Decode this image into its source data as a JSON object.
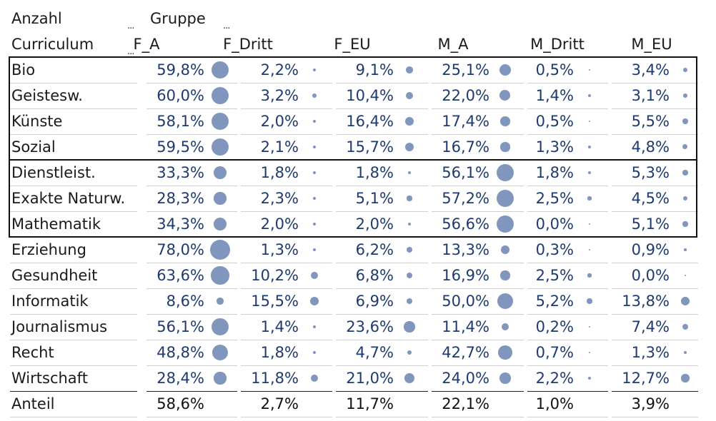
{
  "header": {
    "row_field": "Anzahl",
    "col_field": "Gruppe",
    "row_dim": "Curriculum",
    "filter_marker": "..."
  },
  "chart_data": {
    "type": "table",
    "columns": [
      "F_A",
      "F_Dritt",
      "F_EU",
      "M_A",
      "M_Dritt",
      "M_EU"
    ],
    "rows": [
      {
        "label": "Bio",
        "values": [
          59.8,
          2.2,
          9.1,
          25.1,
          0.5,
          3.4
        ],
        "display": [
          "59,8%",
          "2,2%",
          "9,1%",
          "25,1%",
          "0,5%",
          "3,4%"
        ]
      },
      {
        "label": "Geistesw.",
        "values": [
          60.0,
          3.2,
          10.4,
          22.0,
          1.4,
          3.1
        ],
        "display": [
          "60,0%",
          "3,2%",
          "10,4%",
          "22,0%",
          "1,4%",
          "3,1%"
        ]
      },
      {
        "label": "Künste",
        "values": [
          58.1,
          2.0,
          16.4,
          17.4,
          0.5,
          5.5
        ],
        "display": [
          "58,1%",
          "2,0%",
          "16,4%",
          "17,4%",
          "0,5%",
          "5,5%"
        ]
      },
      {
        "label": "Sozial",
        "values": [
          59.5,
          2.1,
          15.7,
          16.7,
          1.3,
          4.8
        ],
        "display": [
          "59,5%",
          "2,1%",
          "15,7%",
          "16,7%",
          "1,3%",
          "4,8%"
        ]
      },
      {
        "label": "Dienstleist.",
        "values": [
          33.3,
          1.8,
          1.8,
          56.1,
          1.8,
          5.3
        ],
        "display": [
          "33,3%",
          "1,8%",
          "1,8%",
          "56,1%",
          "1,8%",
          "5,3%"
        ]
      },
      {
        "label": "Exakte Naturw.",
        "values": [
          28.3,
          2.3,
          5.1,
          57.2,
          2.5,
          4.5
        ],
        "display": [
          "28,3%",
          "2,3%",
          "5,1%",
          "57,2%",
          "2,5%",
          "4,5%"
        ]
      },
      {
        "label": "Mathematik",
        "values": [
          34.3,
          2.0,
          2.0,
          56.6,
          0.0,
          5.1
        ],
        "display": [
          "34,3%",
          "2,0%",
          "2,0%",
          "56,6%",
          "0,0%",
          "5,1%"
        ]
      },
      {
        "label": "Erziehung",
        "values": [
          78.0,
          1.3,
          6.2,
          13.3,
          0.3,
          0.9
        ],
        "display": [
          "78,0%",
          "1,3%",
          "6,2%",
          "13,3%",
          "0,3%",
          "0,9%"
        ]
      },
      {
        "label": "Gesundheit",
        "values": [
          63.6,
          10.2,
          6.8,
          16.9,
          2.5,
          0.0
        ],
        "display": [
          "63,6%",
          "10,2%",
          "6,8%",
          "16,9%",
          "2,5%",
          "0,0%"
        ]
      },
      {
        "label": "Informatik",
        "values": [
          8.6,
          15.5,
          6.9,
          50.0,
          5.2,
          13.8
        ],
        "display": [
          "8,6%",
          "15,5%",
          "6,9%",
          "50,0%",
          "5,2%",
          "13,8%"
        ]
      },
      {
        "label": "Journalismus",
        "values": [
          56.1,
          1.4,
          23.6,
          11.4,
          0.2,
          7.4
        ],
        "display": [
          "56,1%",
          "1,4%",
          "23,6%",
          "11,4%",
          "0,2%",
          "7,4%"
        ]
      },
      {
        "label": "Recht",
        "values": [
          48.8,
          1.8,
          4.7,
          42.7,
          0.7,
          1.3
        ],
        "display": [
          "48,8%",
          "1,8%",
          "4,7%",
          "42,7%",
          "0,7%",
          "1,3%"
        ]
      },
      {
        "label": "Wirtschaft",
        "values": [
          28.4,
          11.8,
          21.0,
          24.0,
          2.2,
          12.7
        ],
        "display": [
          "28,4%",
          "11,8%",
          "21,0%",
          "24,0%",
          "2,2%",
          "12,7%"
        ]
      }
    ],
    "total": {
      "label": "Anteil",
      "values": [
        58.6,
        2.7,
        11.7,
        22.1,
        1.0,
        3.9
      ],
      "display": [
        "58,6%",
        "2,7%",
        "11,7%",
        "22,1%",
        "1,0%",
        "3,9%"
      ]
    },
    "groups": [
      [
        "Bio",
        "Sozial"
      ],
      [
        "Dienstleist.",
        "Mathematik"
      ]
    ],
    "dot_color": "#8096bc",
    "value_color": "#1f3a6e"
  }
}
